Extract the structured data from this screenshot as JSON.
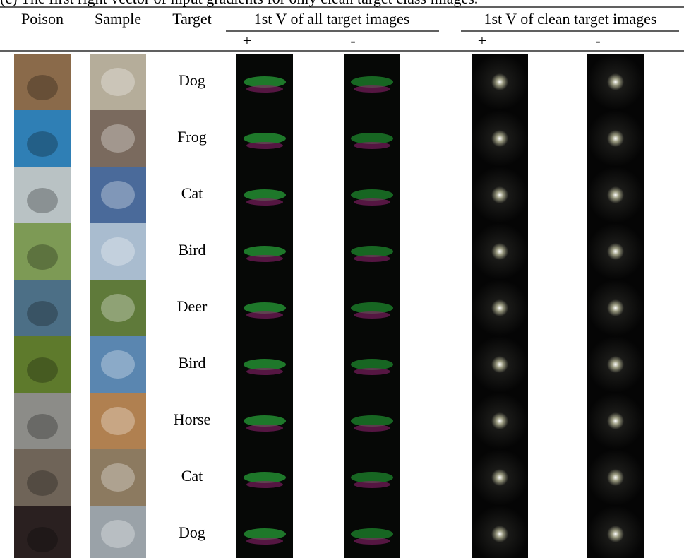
{
  "caption": "(c) The first right vector of input gradients for only clean target class images.",
  "header": {
    "columns": [
      "Poison",
      "Sample",
      "Target"
    ],
    "groups": [
      "1st V of all target images",
      "1st V of clean target images"
    ],
    "signs": [
      "+",
      "-",
      "+",
      "-"
    ]
  },
  "table": {
    "rows": [
      {
        "target": "Dog"
      },
      {
        "target": "Frog"
      },
      {
        "target": "Cat"
      },
      {
        "target": "Bird"
      },
      {
        "target": "Deer"
      },
      {
        "target": "Bird"
      },
      {
        "target": "Horse"
      },
      {
        "target": "Cat"
      },
      {
        "target": "Dog"
      }
    ]
  }
}
